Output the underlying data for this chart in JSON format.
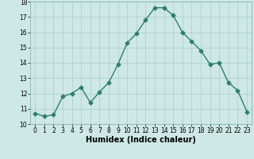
{
  "x": [
    0,
    1,
    2,
    3,
    4,
    5,
    6,
    7,
    8,
    9,
    10,
    11,
    12,
    13,
    14,
    15,
    16,
    17,
    18,
    19,
    20,
    21,
    22,
    23
  ],
  "y": [
    10.7,
    10.5,
    10.6,
    11.8,
    12.0,
    12.4,
    11.4,
    12.1,
    12.7,
    13.9,
    15.3,
    15.9,
    16.8,
    17.6,
    17.6,
    17.1,
    16.0,
    15.4,
    14.8,
    13.9,
    14.0,
    12.7,
    12.2,
    10.8
  ],
  "line_color": "#2e7d6e",
  "marker": "D",
  "marker_size": 2.5,
  "line_width": 1.0,
  "bg_color": "#cde8e5",
  "grid_color": "#aaceca",
  "xlabel": "Humidex (Indice chaleur)",
  "xlim": [
    -0.5,
    23.5
  ],
  "ylim": [
    10,
    18
  ],
  "yticks": [
    10,
    11,
    12,
    13,
    14,
    15,
    16,
    17,
    18
  ],
  "xticks": [
    0,
    1,
    2,
    3,
    4,
    5,
    6,
    7,
    8,
    9,
    10,
    11,
    12,
    13,
    14,
    15,
    16,
    17,
    18,
    19,
    20,
    21,
    22,
    23
  ],
  "tick_fontsize": 5.5,
  "xlabel_fontsize": 7.0,
  "xlabel_fontweight": "bold"
}
